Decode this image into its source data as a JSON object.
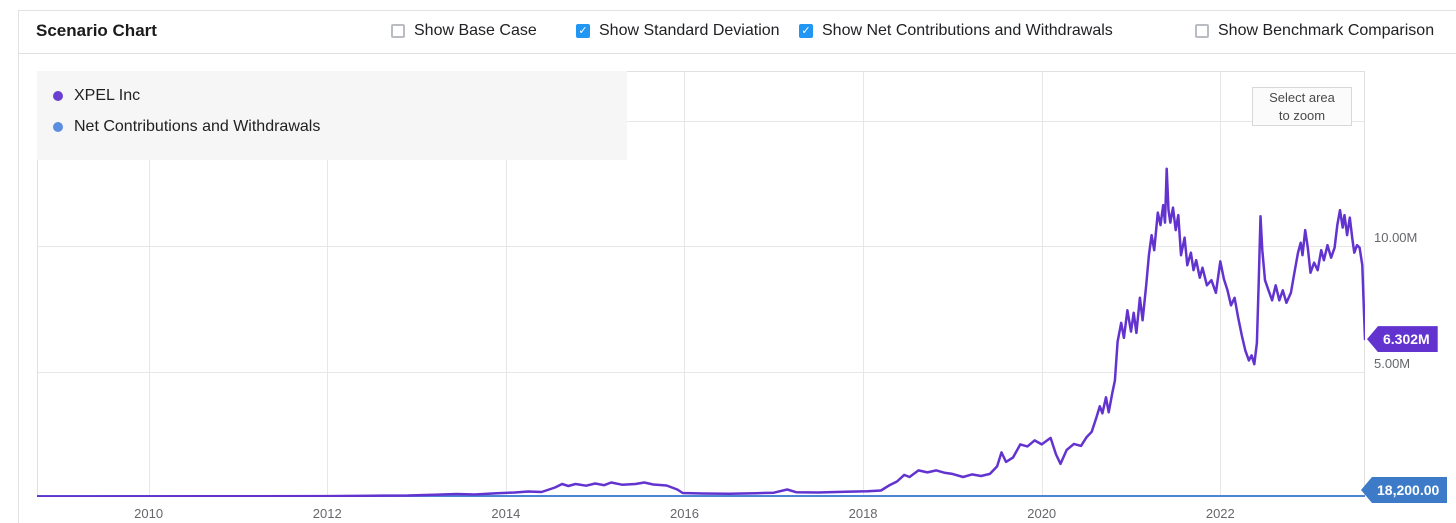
{
  "header": {
    "title": "Scenario Chart",
    "checkboxes": [
      {
        "label": "Show Base Case",
        "checked": false
      },
      {
        "label": "Show Standard Deviation",
        "checked": true
      },
      {
        "label": "Show Net Contributions and Withdrawals",
        "checked": true
      },
      {
        "label": "Show Benchmark Comparison",
        "checked": false
      }
    ],
    "checkbox_checked_color": "#2196f3",
    "check_glyph": "✓"
  },
  "legend": {
    "items": [
      {
        "label": "XPEL Inc",
        "dot_color": "#6a3fd1"
      },
      {
        "label": "Net Contributions and Withdrawals",
        "dot_color": "#5b8de0"
      }
    ]
  },
  "zoom_button": {
    "line1": "Select area",
    "line2": "to zoom"
  },
  "value_badges": [
    {
      "text": "6.302M",
      "color": "#6333d0",
      "value": 6.302,
      "tip_x": 1367
    },
    {
      "text": "18,200.00",
      "color": "#3d7bc8",
      "value": 0.0182,
      "tip_x": 1361,
      "y_nudge": -6.5
    }
  ],
  "chart_data": {
    "type": "line",
    "title": "Scenario Chart",
    "xlabel": "",
    "ylabel": "",
    "x_range": [
      2008.75,
      2023.62
    ],
    "y_range": [
      0,
      17
    ],
    "grid": true,
    "legend_position": "top-left",
    "x_ticks": [
      {
        "x": 2010,
        "label": "2010"
      },
      {
        "x": 2012,
        "label": "2012"
      },
      {
        "x": 2014,
        "label": "2014"
      },
      {
        "x": 2016,
        "label": "2016"
      },
      {
        "x": 2018,
        "label": "2018"
      },
      {
        "x": 2020,
        "label": "2020"
      },
      {
        "x": 2022,
        "label": "2022"
      }
    ],
    "y_ticks": [
      {
        "y": 5,
        "label": "5.00M"
      },
      {
        "y": 10,
        "label": "10.00M"
      },
      {
        "y": 15,
        "label": ""
      }
    ],
    "series": [
      {
        "name": "Net Contributions and Withdrawals",
        "color": "#4f86d4",
        "stroke_width": 3,
        "end_value_label": "18,200.00",
        "points": [
          [
            2008.75,
            0.0182
          ],
          [
            2023.62,
            0.0182
          ]
        ]
      },
      {
        "name": "XPEL Inc",
        "color": "#6333d0",
        "stroke_width": 2.5,
        "end_value_label": "6.302M",
        "points": [
          [
            2008.75,
            0.018
          ],
          [
            2009.3,
            0.02
          ],
          [
            2010,
            0.025
          ],
          [
            2010.6,
            0.028
          ],
          [
            2011.2,
            0.03
          ],
          [
            2012,
            0.035
          ],
          [
            2012.5,
            0.05
          ],
          [
            2012.9,
            0.06
          ],
          [
            2013.2,
            0.09
          ],
          [
            2013.45,
            0.12
          ],
          [
            2013.65,
            0.1
          ],
          [
            2013.9,
            0.15
          ],
          [
            2014.1,
            0.18
          ],
          [
            2014.25,
            0.22
          ],
          [
            2014.4,
            0.2
          ],
          [
            2014.55,
            0.38
          ],
          [
            2014.63,
            0.52
          ],
          [
            2014.7,
            0.44
          ],
          [
            2014.78,
            0.52
          ],
          [
            2014.9,
            0.45
          ],
          [
            2015.0,
            0.54
          ],
          [
            2015.1,
            0.47
          ],
          [
            2015.18,
            0.58
          ],
          [
            2015.3,
            0.49
          ],
          [
            2015.45,
            0.52
          ],
          [
            2015.55,
            0.58
          ],
          [
            2015.65,
            0.5
          ],
          [
            2015.8,
            0.46
          ],
          [
            2015.92,
            0.3
          ],
          [
            2015.98,
            0.16
          ],
          [
            2016.2,
            0.14
          ],
          [
            2016.5,
            0.13
          ],
          [
            2016.8,
            0.15
          ],
          [
            2017.0,
            0.17
          ],
          [
            2017.15,
            0.3
          ],
          [
            2017.25,
            0.19
          ],
          [
            2017.5,
            0.18
          ],
          [
            2017.8,
            0.21
          ],
          [
            2018.05,
            0.23
          ],
          [
            2018.2,
            0.26
          ],
          [
            2018.3,
            0.48
          ],
          [
            2018.38,
            0.62
          ],
          [
            2018.46,
            0.88
          ],
          [
            2018.52,
            0.8
          ],
          [
            2018.62,
            1.06
          ],
          [
            2018.72,
            0.98
          ],
          [
            2018.82,
            1.06
          ],
          [
            2018.92,
            0.96
          ],
          [
            2019.0,
            0.92
          ],
          [
            2019.12,
            0.8
          ],
          [
            2019.22,
            0.9
          ],
          [
            2019.32,
            0.84
          ],
          [
            2019.42,
            0.92
          ],
          [
            2019.5,
            1.22
          ],
          [
            2019.55,
            1.78
          ],
          [
            2019.6,
            1.4
          ],
          [
            2019.68,
            1.58
          ],
          [
            2019.76,
            2.1
          ],
          [
            2019.84,
            2.02
          ],
          [
            2019.92,
            2.26
          ],
          [
            2020.0,
            2.1
          ],
          [
            2020.1,
            2.36
          ],
          [
            2020.16,
            1.7
          ],
          [
            2020.21,
            1.32
          ],
          [
            2020.28,
            1.88
          ],
          [
            2020.36,
            2.12
          ],
          [
            2020.44,
            2.04
          ],
          [
            2020.5,
            2.38
          ],
          [
            2020.56,
            2.6
          ],
          [
            2020.61,
            3.15
          ],
          [
            2020.65,
            3.62
          ],
          [
            2020.68,
            3.34
          ],
          [
            2020.72,
            3.98
          ],
          [
            2020.75,
            3.38
          ],
          [
            2020.79,
            4.15
          ],
          [
            2020.82,
            4.65
          ],
          [
            2020.85,
            6.2
          ],
          [
            2020.89,
            6.95
          ],
          [
            2020.92,
            6.35
          ],
          [
            2020.96,
            7.45
          ],
          [
            2021.0,
            6.6
          ],
          [
            2021.03,
            7.35
          ],
          [
            2021.06,
            6.55
          ],
          [
            2021.1,
            7.95
          ],
          [
            2021.13,
            7.05
          ],
          [
            2021.17,
            8.45
          ],
          [
            2021.2,
            9.65
          ],
          [
            2021.23,
            10.45
          ],
          [
            2021.26,
            9.85
          ],
          [
            2021.3,
            11.35
          ],
          [
            2021.33,
            10.85
          ],
          [
            2021.36,
            11.65
          ],
          [
            2021.38,
            10.95
          ],
          [
            2021.4,
            13.1
          ],
          [
            2021.42,
            11.45
          ],
          [
            2021.44,
            10.95
          ],
          [
            2021.47,
            11.55
          ],
          [
            2021.5,
            10.65
          ],
          [
            2021.53,
            11.25
          ],
          [
            2021.56,
            9.65
          ],
          [
            2021.6,
            10.35
          ],
          [
            2021.63,
            9.25
          ],
          [
            2021.67,
            9.75
          ],
          [
            2021.7,
            9.05
          ],
          [
            2021.73,
            9.45
          ],
          [
            2021.77,
            8.75
          ],
          [
            2021.8,
            9.15
          ],
          [
            2021.85,
            8.45
          ],
          [
            2021.9,
            8.65
          ],
          [
            2021.95,
            8.15
          ],
          [
            2022.0,
            9.4
          ],
          [
            2022.04,
            8.7
          ],
          [
            2022.08,
            8.25
          ],
          [
            2022.12,
            7.65
          ],
          [
            2022.16,
            7.95
          ],
          [
            2022.2,
            7.15
          ],
          [
            2022.24,
            6.45
          ],
          [
            2022.28,
            5.85
          ],
          [
            2022.32,
            5.45
          ],
          [
            2022.35,
            5.65
          ],
          [
            2022.38,
            5.3
          ],
          [
            2022.41,
            6.15
          ],
          [
            2022.43,
            8.55
          ],
          [
            2022.45,
            11.2
          ],
          [
            2022.47,
            9.85
          ],
          [
            2022.5,
            8.65
          ],
          [
            2022.54,
            8.25
          ],
          [
            2022.58,
            7.85
          ],
          [
            2022.62,
            8.45
          ],
          [
            2022.66,
            7.85
          ],
          [
            2022.7,
            8.25
          ],
          [
            2022.74,
            7.75
          ],
          [
            2022.79,
            8.15
          ],
          [
            2022.83,
            8.95
          ],
          [
            2022.87,
            9.75
          ],
          [
            2022.9,
            10.15
          ],
          [
            2022.92,
            9.65
          ],
          [
            2022.95,
            10.65
          ],
          [
            2022.98,
            9.95
          ],
          [
            2023.01,
            8.95
          ],
          [
            2023.05,
            9.35
          ],
          [
            2023.09,
            9.05
          ],
          [
            2023.13,
            9.85
          ],
          [
            2023.16,
            9.45
          ],
          [
            2023.2,
            10.05
          ],
          [
            2023.24,
            9.55
          ],
          [
            2023.28,
            9.95
          ],
          [
            2023.31,
            10.85
          ],
          [
            2023.34,
            11.45
          ],
          [
            2023.37,
            10.75
          ],
          [
            2023.39,
            11.25
          ],
          [
            2023.42,
            10.45
          ],
          [
            2023.45,
            11.15
          ],
          [
            2023.48,
            10.25
          ],
          [
            2023.5,
            9.75
          ],
          [
            2023.53,
            10.05
          ],
          [
            2023.56,
            9.95
          ],
          [
            2023.59,
            9.25
          ],
          [
            2023.61,
            7.25
          ],
          [
            2023.62,
            6.302
          ]
        ]
      }
    ]
  }
}
